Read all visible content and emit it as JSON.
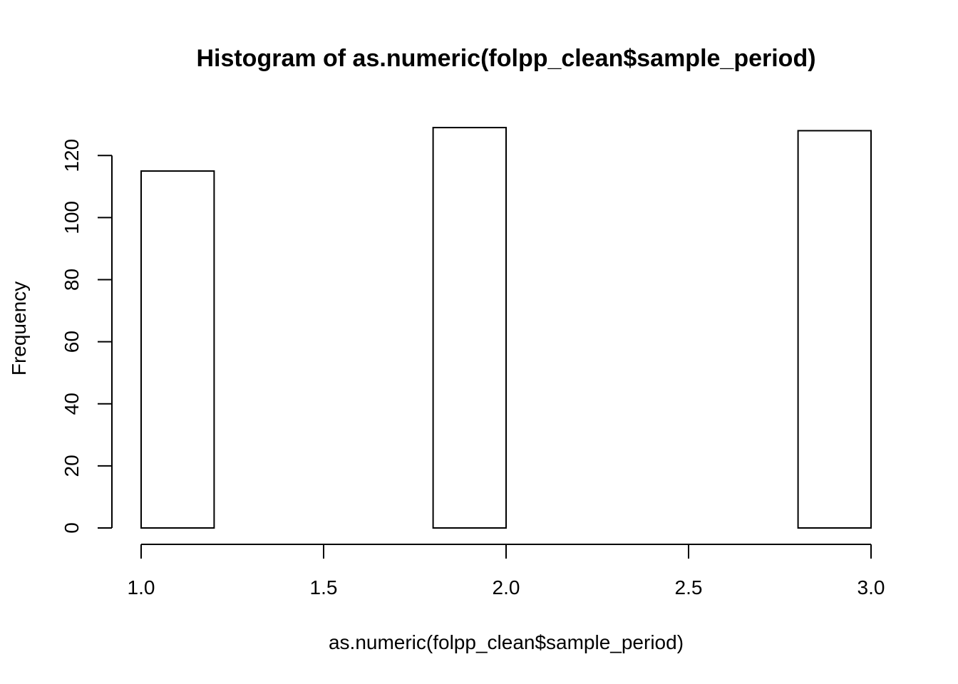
{
  "chart_data": {
    "type": "bar",
    "title": "Histogram of as.numeric(folpp_clean$sample_period)",
    "xlabel": "as.numeric(folpp_clean$sample_period)",
    "ylabel": "Frequency",
    "bins": [
      {
        "x0": 1.0,
        "x1": 1.2,
        "count": 115
      },
      {
        "x0": 1.2,
        "x1": 1.4,
        "count": 0
      },
      {
        "x0": 1.4,
        "x1": 1.6,
        "count": 0
      },
      {
        "x0": 1.6,
        "x1": 1.8,
        "count": 0
      },
      {
        "x0": 1.8,
        "x1": 2.0,
        "count": 129
      },
      {
        "x0": 2.0,
        "x1": 2.2,
        "count": 0
      },
      {
        "x0": 2.2,
        "x1": 2.4,
        "count": 0
      },
      {
        "x0": 2.4,
        "x1": 2.6,
        "count": 0
      },
      {
        "x0": 2.6,
        "x1": 2.8,
        "count": 0
      },
      {
        "x0": 2.8,
        "x1": 3.0,
        "count": 128
      }
    ],
    "xlim": [
      1.0,
      3.0
    ],
    "ylim": [
      0,
      129
    ],
    "xticks": [
      1.0,
      1.5,
      2.0,
      2.5,
      3.0
    ],
    "xtick_labels": [
      "1.0",
      "1.5",
      "2.0",
      "2.5",
      "3.0"
    ],
    "yticks": [
      0,
      20,
      40,
      60,
      80,
      100,
      120
    ],
    "ytick_labels": [
      "0",
      "20",
      "40",
      "60",
      "80",
      "100",
      "120"
    ],
    "grid": false
  }
}
